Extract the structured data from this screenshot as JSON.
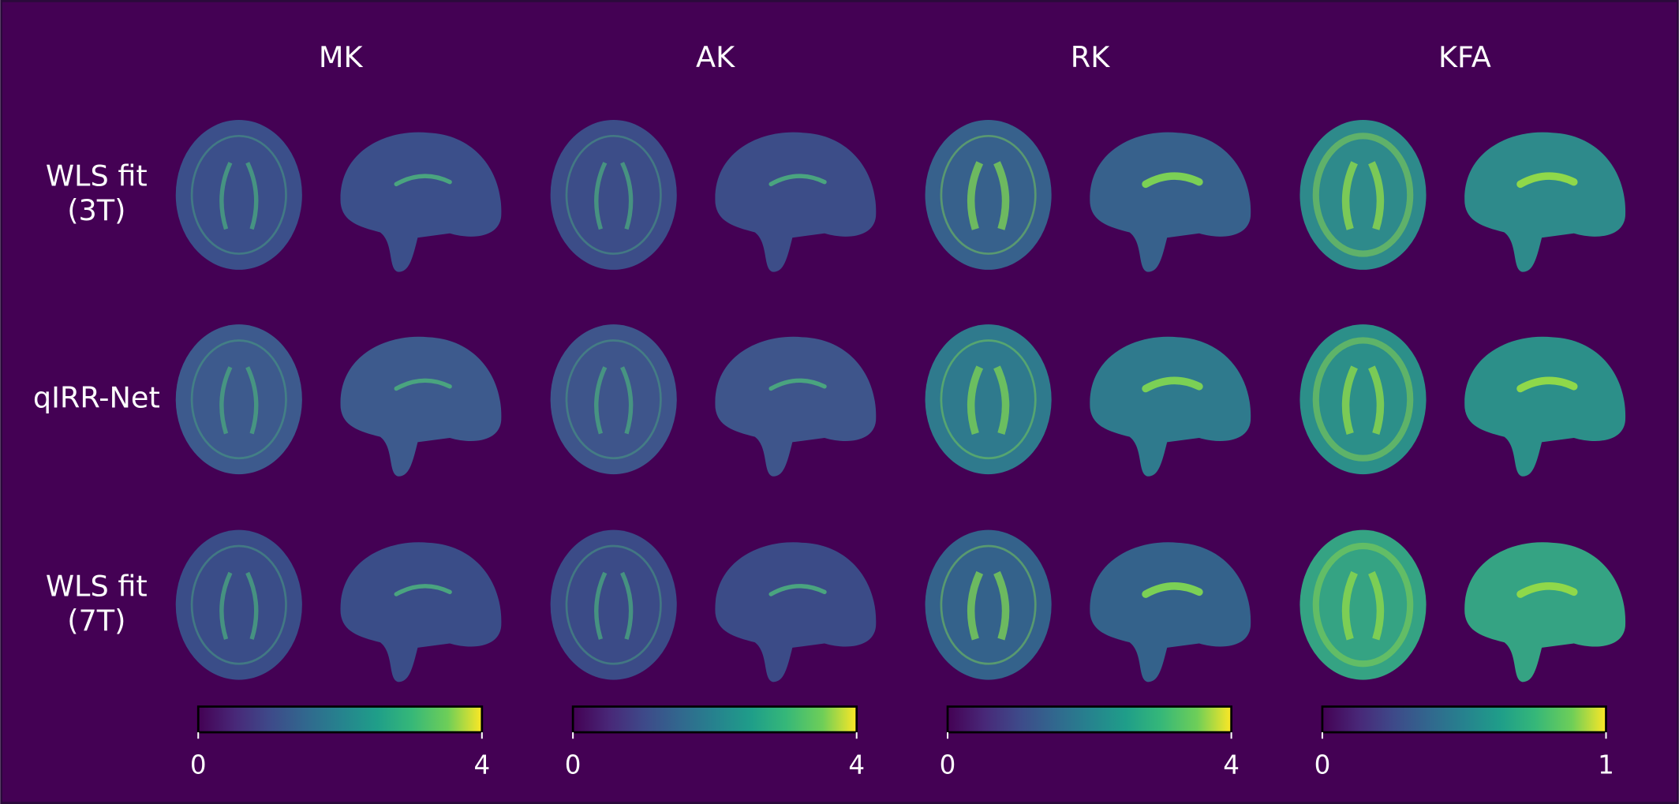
{
  "columns": [
    {
      "title": "MK",
      "colorbar": {
        "range": [
          0,
          4
        ],
        "ticks": [
          0,
          4
        ]
      }
    },
    {
      "title": "AK",
      "colorbar": {
        "range": [
          0,
          4
        ],
        "ticks": [
          0,
          4
        ]
      }
    },
    {
      "title": "RK",
      "colorbar": {
        "range": [
          0,
          4
        ],
        "ticks": [
          0,
          4
        ]
      }
    },
    {
      "title": "KFA",
      "colorbar": {
        "range": [
          0,
          1
        ],
        "ticks": [
          0,
          1
        ]
      }
    }
  ],
  "rows": [
    {
      "label": [
        "WLS fit",
        "(3T)"
      ]
    },
    {
      "label": [
        "qIRR-Net"
      ]
    },
    {
      "label": [
        "WLS fit",
        "(7T)"
      ]
    }
  ]
}
